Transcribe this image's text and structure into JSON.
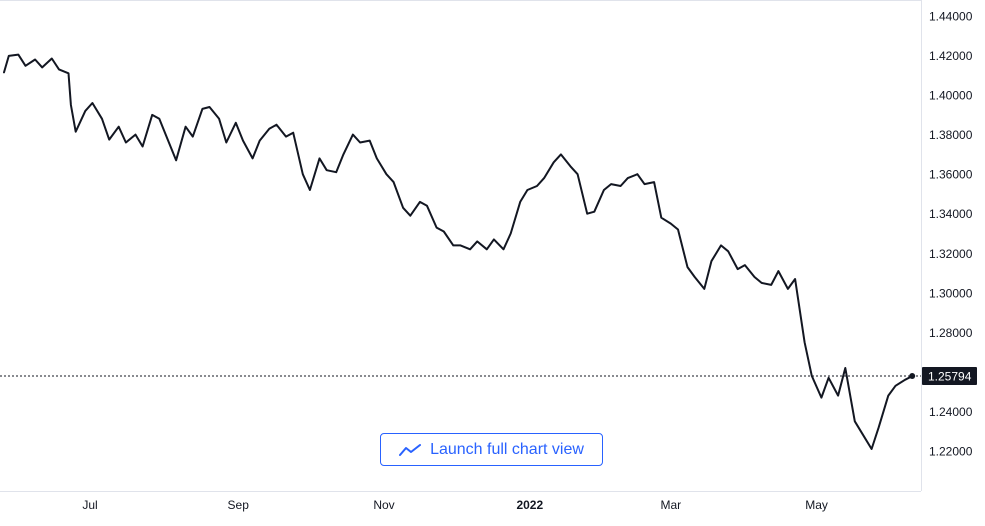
{
  "launch_button": {
    "label": "Launch full chart view",
    "icon": "chart-line-icon"
  },
  "colors": {
    "line": "#131722",
    "axis_text": "#131722",
    "grid": "#e0e3eb",
    "accent": "#2962ff",
    "price_label_bg": "#131722",
    "price_label_text": "#ffffff"
  },
  "chart_data": {
    "type": "line",
    "title": "",
    "xlabel": "",
    "ylabel": "",
    "ylim": [
      1.2,
      1.44
    ],
    "y_ticks": [
      "1.44000",
      "1.42000",
      "1.40000",
      "1.38000",
      "1.36000",
      "1.34000",
      "1.32000",
      "1.30000",
      "1.28000",
      "1.24000",
      "1.22000"
    ],
    "x_tick_labels": [
      {
        "label": "Jul",
        "date": "2021-07-01",
        "bold": false
      },
      {
        "label": "Sep",
        "date": "2021-09-01",
        "bold": false
      },
      {
        "label": "Nov",
        "date": "2021-11-01",
        "bold": false
      },
      {
        "label": "2022",
        "date": "2022-01-01",
        "bold": true
      },
      {
        "label": "Mar",
        "date": "2022-03-01",
        "bold": false
      },
      {
        "label": "May",
        "date": "2022-05-01",
        "bold": false
      }
    ],
    "x_range": [
      "2021-05-26",
      "2022-06-30"
    ],
    "last_value": 1.25794,
    "last_value_label": "1.25794",
    "grid": false,
    "series": [
      {
        "x": [
          "2021-05-26",
          "2021-05-28",
          "2021-06-01",
          "2021-06-04",
          "2021-06-08",
          "2021-06-11",
          "2021-06-15",
          "2021-06-18",
          "2021-06-22",
          "2021-06-23",
          "2021-06-25",
          "2021-06-29",
          "2021-07-02",
          "2021-07-06",
          "2021-07-09",
          "2021-07-13",
          "2021-07-16",
          "2021-07-20",
          "2021-07-23",
          "2021-07-27",
          "2021-07-30",
          "2021-08-03",
          "2021-08-06",
          "2021-08-10",
          "2021-08-13",
          "2021-08-17",
          "2021-08-20",
          "2021-08-24",
          "2021-08-27",
          "2021-08-31",
          "2021-09-03",
          "2021-09-07",
          "2021-09-10",
          "2021-09-14",
          "2021-09-17",
          "2021-09-21",
          "2021-09-24",
          "2021-09-28",
          "2021-10-01",
          "2021-10-05",
          "2021-10-08",
          "2021-10-12",
          "2021-10-15",
          "2021-10-19",
          "2021-10-22",
          "2021-10-26",
          "2021-10-29",
          "2021-11-02",
          "2021-11-05",
          "2021-11-09",
          "2021-11-12",
          "2021-11-16",
          "2021-11-19",
          "2021-11-23",
          "2021-11-26",
          "2021-11-30",
          "2021-12-03",
          "2021-12-07",
          "2021-12-10",
          "2021-12-14",
          "2021-12-17",
          "2021-12-21",
          "2021-12-24",
          "2021-12-28",
          "2021-12-31",
          "2022-01-04",
          "2022-01-07",
          "2022-01-11",
          "2022-01-14",
          "2022-01-18",
          "2022-01-21",
          "2022-01-25",
          "2022-01-28",
          "2022-02-01",
          "2022-02-04",
          "2022-02-08",
          "2022-02-11",
          "2022-02-15",
          "2022-02-18",
          "2022-02-22",
          "2022-02-25",
          "2022-03-01",
          "2022-03-04",
          "2022-03-08",
          "2022-03-11",
          "2022-03-15",
          "2022-03-18",
          "2022-03-22",
          "2022-03-25",
          "2022-03-29",
          "2022-04-01",
          "2022-04-05",
          "2022-04-08",
          "2022-04-12",
          "2022-04-15",
          "2022-04-19",
          "2022-04-22",
          "2022-04-26",
          "2022-04-29",
          "2022-05-03",
          "2022-05-06",
          "2022-05-10",
          "2022-05-13",
          "2022-05-17",
          "2022-05-20",
          "2022-05-24",
          "2022-05-27",
          "2022-05-31",
          "2022-06-03",
          "2022-06-07",
          "2022-06-10"
        ],
        "y": [
          1.4115,
          1.4198,
          1.4205,
          1.4148,
          1.418,
          1.414,
          1.4185,
          1.413,
          1.411,
          1.395,
          1.3815,
          1.392,
          1.396,
          1.388,
          1.3775,
          1.384,
          1.376,
          1.38,
          1.374,
          1.39,
          1.388,
          1.376,
          1.367,
          1.384,
          1.379,
          1.393,
          1.394,
          1.388,
          1.376,
          1.386,
          1.377,
          1.368,
          1.377,
          1.383,
          1.385,
          1.379,
          1.381,
          1.36,
          1.352,
          1.368,
          1.362,
          1.361,
          1.37,
          1.38,
          1.376,
          1.377,
          1.368,
          1.36,
          1.356,
          1.343,
          1.339,
          1.346,
          1.344,
          1.333,
          1.331,
          1.324,
          1.324,
          1.322,
          1.326,
          1.322,
          1.327,
          1.322,
          1.33,
          1.346,
          1.352,
          1.354,
          1.358,
          1.366,
          1.37,
          1.364,
          1.36,
          1.34,
          1.341,
          1.352,
          1.355,
          1.354,
          1.358,
          1.36,
          1.355,
          1.356,
          1.338,
          1.335,
          1.332,
          1.313,
          1.308,
          1.302,
          1.316,
          1.324,
          1.321,
          1.312,
          1.314,
          1.308,
          1.305,
          1.304,
          1.311,
          1.302,
          1.307,
          1.275,
          1.258,
          1.247,
          1.257,
          1.248,
          1.262,
          1.235,
          1.229,
          1.221,
          1.232,
          1.248,
          1.253,
          1.256,
          1.2579
        ]
      }
    ]
  }
}
